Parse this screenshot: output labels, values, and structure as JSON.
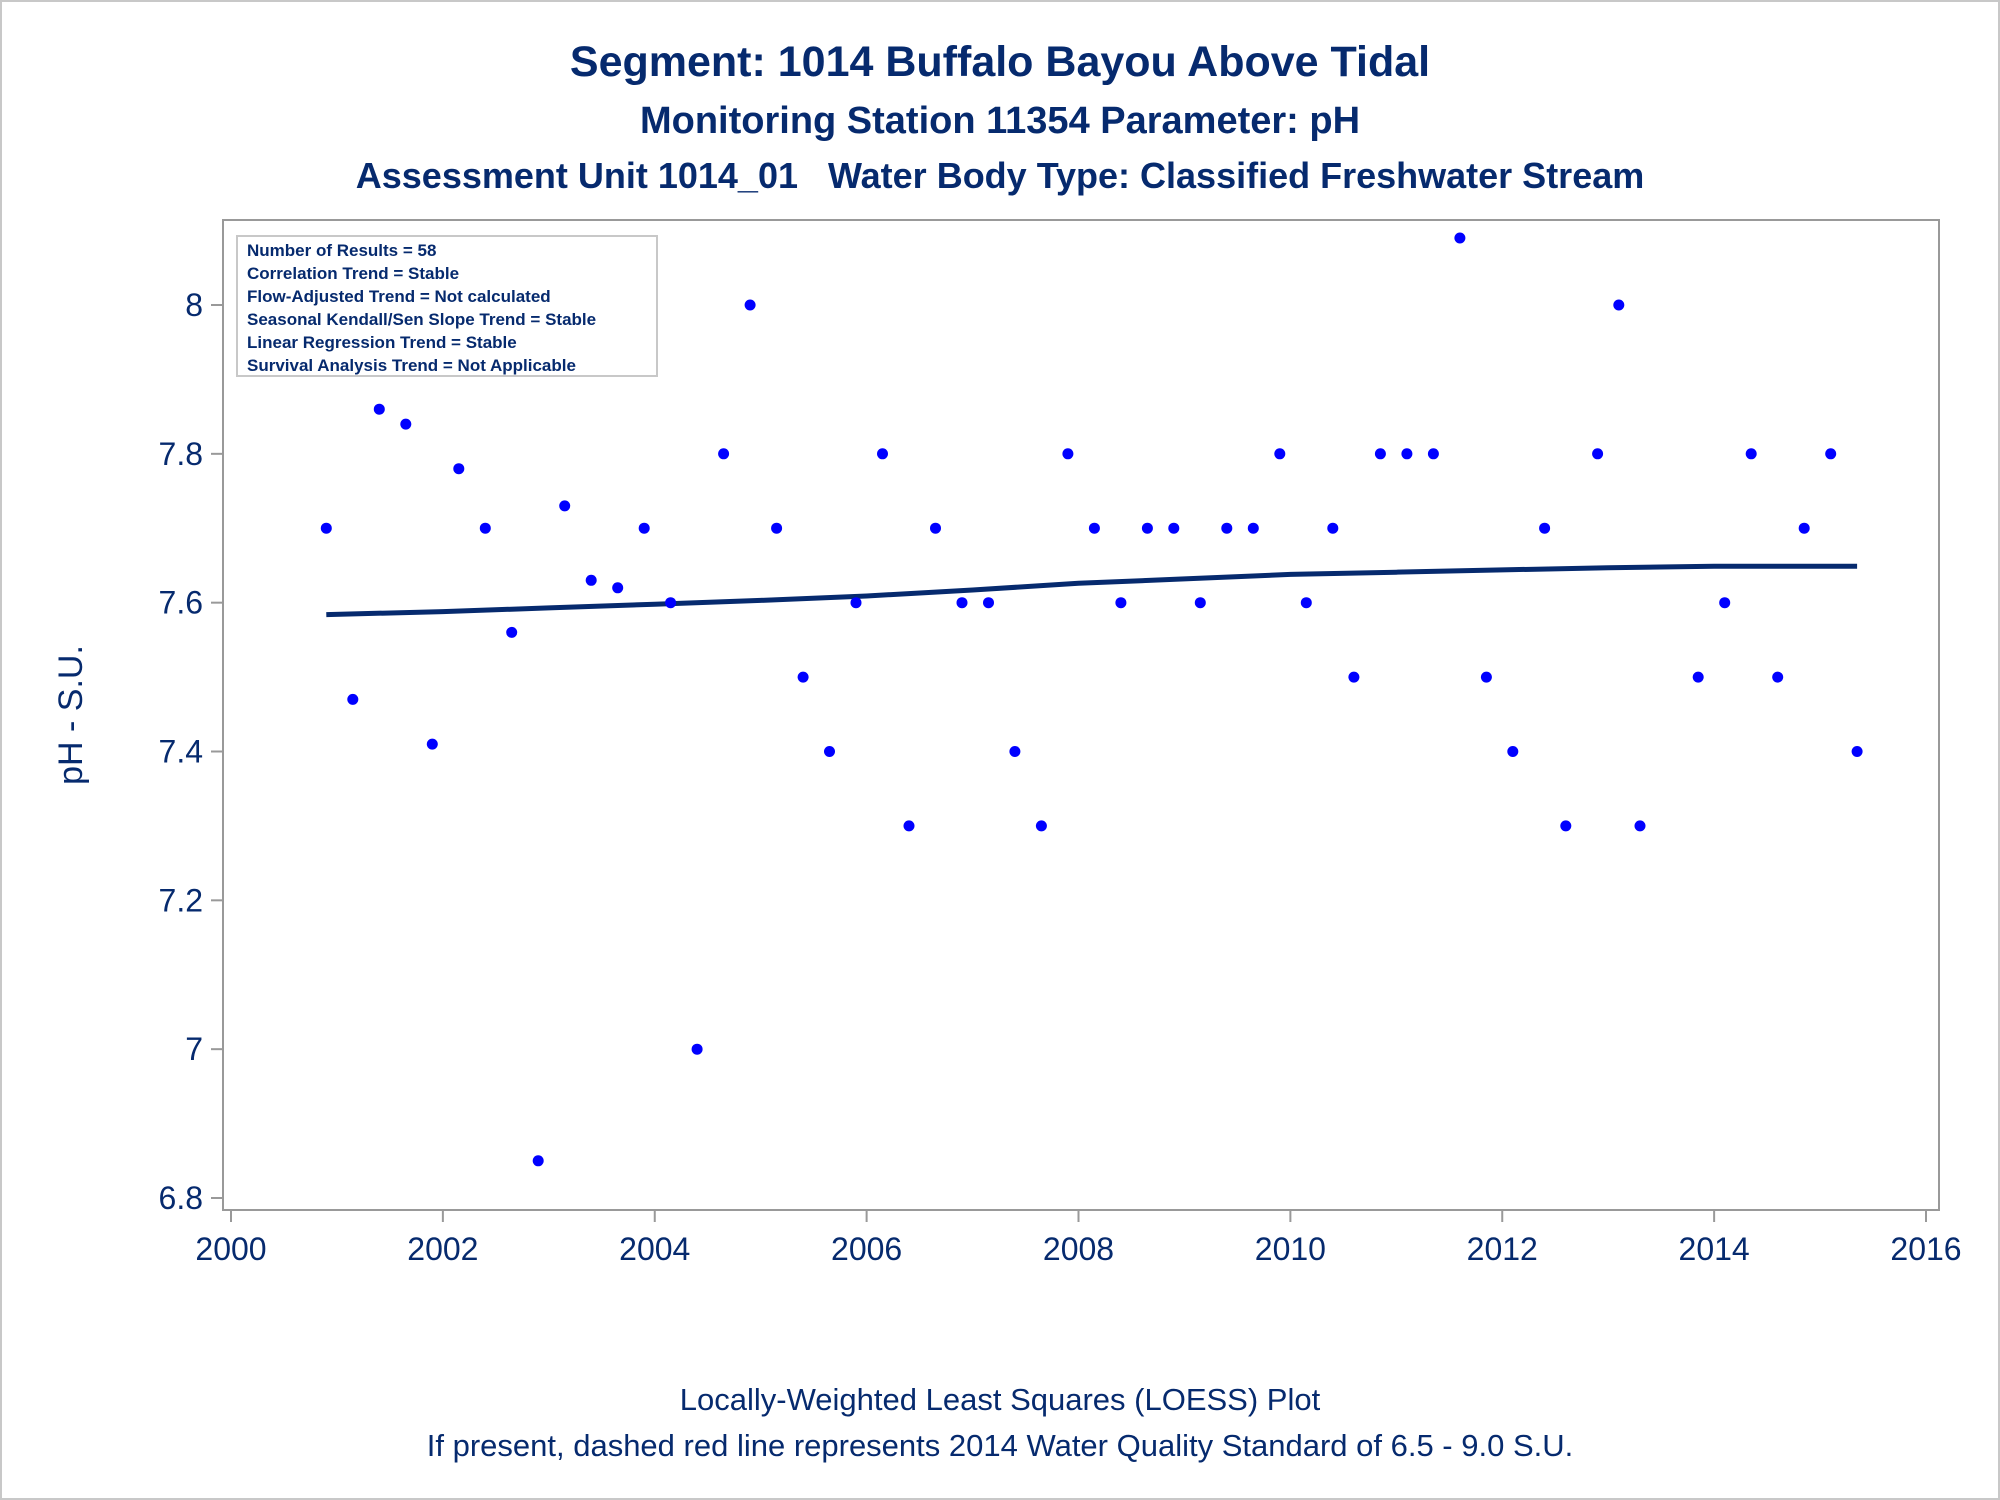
{
  "titles": {
    "line1": "Segment: 1014  Buffalo Bayou Above Tidal",
    "line2": "Monitoring Station 11354 Parameter: pH",
    "line3": "Assessment Unit 1014_01   Water Body Type: Classified Freshwater Stream"
  },
  "footnotes": {
    "line1": "Locally-Weighted Least Squares (LOESS) Plot",
    "line2": "If present, dashed red line represents 2014 Water Quality Standard of 6.5 - 9.0 S.U."
  },
  "stats_box": [
    "Number of Results = 58",
    "Correlation Trend = Stable",
    "Flow-Adjusted Trend = Not calculated",
    "Seasonal Kendall/Sen Slope Trend = Stable",
    "Linear Regression Trend = Stable",
    "Survival Analysis Trend = Not Applicable"
  ],
  "colors": {
    "text": "#062a6e",
    "points": "#0000ff",
    "loess_line": "#062a6e",
    "axis": "#999999"
  },
  "chart_data": {
    "type": "scatter",
    "ylabel": "pH - S.U.",
    "xlabel": "",
    "xlim": [
      2000,
      2016
    ],
    "ylim": [
      6.78,
      8.12
    ],
    "xticks": [
      "2000",
      "2002",
      "2004",
      "2006",
      "2008",
      "2010",
      "2012",
      "2014",
      "2016"
    ],
    "yticks": [
      "6.8",
      "7",
      "7.2",
      "7.4",
      "7.6",
      "7.8",
      "8"
    ],
    "grid": false,
    "points": [
      [
        2000.9,
        7.7
      ],
      [
        2001.15,
        7.47
      ],
      [
        2001.4,
        7.86
      ],
      [
        2001.65,
        7.84
      ],
      [
        2001.9,
        7.41
      ],
      [
        2002.15,
        7.78
      ],
      [
        2002.4,
        7.7
      ],
      [
        2002.65,
        7.56
      ],
      [
        2002.9,
        6.85
      ],
      [
        2003.15,
        7.73
      ],
      [
        2003.4,
        7.63
      ],
      [
        2003.65,
        7.62
      ],
      [
        2003.9,
        7.7
      ],
      [
        2004.15,
        7.6
      ],
      [
        2004.4,
        7.0
      ],
      [
        2004.65,
        7.8
      ],
      [
        2004.9,
        8.0
      ],
      [
        2005.15,
        7.7
      ],
      [
        2005.4,
        7.5
      ],
      [
        2005.65,
        7.4
      ],
      [
        2005.9,
        7.6
      ],
      [
        2006.15,
        7.8
      ],
      [
        2006.4,
        7.3
      ],
      [
        2006.65,
        7.7
      ],
      [
        2006.9,
        7.6
      ],
      [
        2007.15,
        7.6
      ],
      [
        2007.4,
        7.4
      ],
      [
        2007.65,
        7.3
      ],
      [
        2007.9,
        7.8
      ],
      [
        2008.15,
        7.7
      ],
      [
        2008.4,
        7.6
      ],
      [
        2008.65,
        7.7
      ],
      [
        2008.9,
        7.7
      ],
      [
        2009.15,
        7.6
      ],
      [
        2009.4,
        7.7
      ],
      [
        2009.65,
        7.7
      ],
      [
        2009.9,
        7.8
      ],
      [
        2010.15,
        7.6
      ],
      [
        2010.4,
        7.7
      ],
      [
        2010.6,
        7.5
      ],
      [
        2010.85,
        7.8
      ],
      [
        2011.1,
        7.8
      ],
      [
        2011.35,
        7.8
      ],
      [
        2011.6,
        8.09
      ],
      [
        2011.85,
        7.5
      ],
      [
        2012.1,
        7.4
      ],
      [
        2012.4,
        7.7
      ],
      [
        2012.6,
        7.3
      ],
      [
        2012.9,
        7.8
      ],
      [
        2013.1,
        8.0
      ],
      [
        2013.3,
        7.3
      ],
      [
        2013.85,
        7.5
      ],
      [
        2014.1,
        7.6
      ],
      [
        2014.35,
        7.8
      ],
      [
        2014.6,
        7.5
      ],
      [
        2014.85,
        7.7
      ],
      [
        2015.1,
        7.8
      ],
      [
        2015.35,
        7.4
      ]
    ],
    "loess": [
      [
        2000.9,
        7.584
      ],
      [
        2002.0,
        7.588
      ],
      [
        2003.0,
        7.593
      ],
      [
        2004.0,
        7.598
      ],
      [
        2005.0,
        7.603
      ],
      [
        2006.0,
        7.609
      ],
      [
        2007.0,
        7.617
      ],
      [
        2008.0,
        7.626
      ],
      [
        2009.0,
        7.632
      ],
      [
        2010.0,
        7.638
      ],
      [
        2011.0,
        7.641
      ],
      [
        2012.0,
        7.644
      ],
      [
        2013.0,
        7.647
      ],
      [
        2014.0,
        7.649
      ],
      [
        2015.35,
        7.649
      ]
    ]
  }
}
